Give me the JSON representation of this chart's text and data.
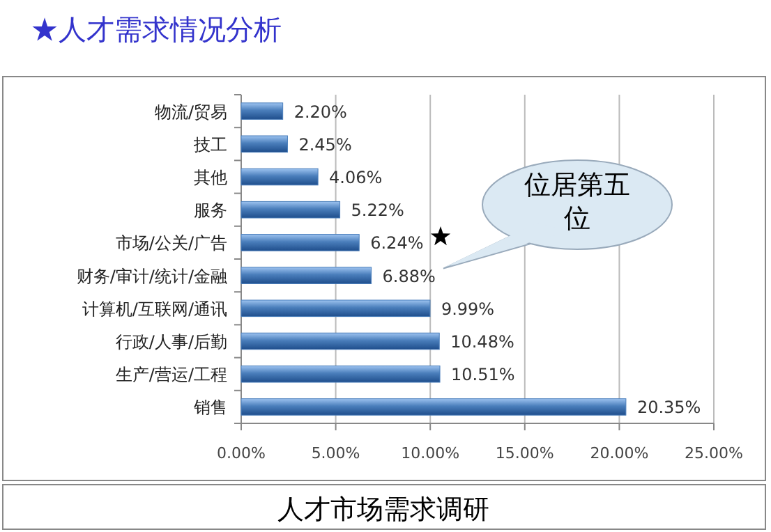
{
  "chart_data": {
    "type": "bar",
    "orientation": "horizontal",
    "title": "★人才需求情况分析",
    "categories": [
      "物流/贸易",
      "技工",
      "其他",
      "服务",
      "市场/公关/广告",
      "财务/审计/统计/金融",
      "计算机/互联网/通讯",
      "行政/人事/后勤",
      "生产/营运/工程",
      "销售"
    ],
    "series": [
      {
        "color": "#4a7ebb",
        "values": [
          2.2,
          2.45,
          4.06,
          5.22,
          6.24,
          6.88,
          9.99,
          10.48,
          10.51,
          20.35
        ],
        "value_labels": [
          "2.20%",
          "2.45%",
          "4.06%",
          "5.22%",
          "6.24%",
          "6.88%",
          "9.99%",
          "10.48%",
          "10.51%",
          "20.35%"
        ]
      }
    ],
    "xlim": [
      0,
      25
    ],
    "xticks": [
      {
        "value": 0,
        "label": "0.00%"
      },
      {
        "value": 5,
        "label": "5.00%"
      },
      {
        "value": 10,
        "label": "10.00%"
      },
      {
        "value": 15,
        "label": "15.00%"
      },
      {
        "value": 20,
        "label": "20.00%"
      },
      {
        "value": 25,
        "label": "25.00%"
      }
    ],
    "grid": "x",
    "annotations": [
      "位居第五位",
      "人才市场需求调研"
    ]
  }
}
